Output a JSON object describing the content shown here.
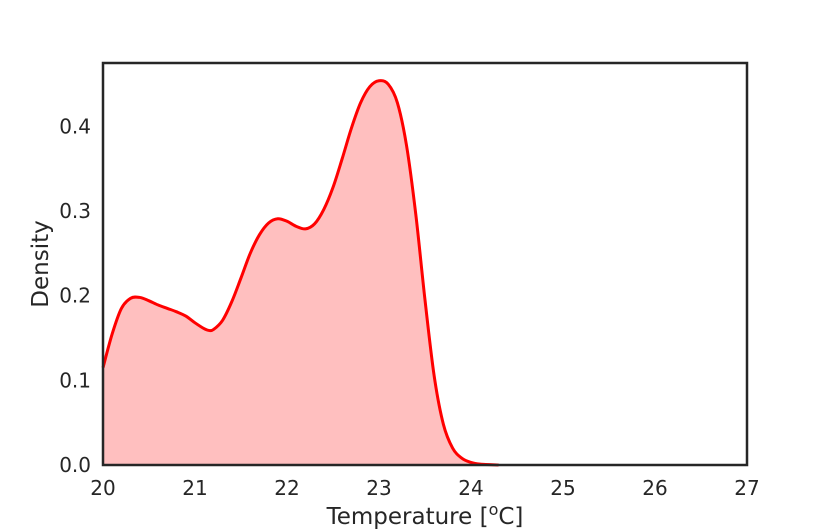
{
  "chart_data": {
    "type": "area",
    "xlabel": "Temperature [",
    "xlabel_sup": "o",
    "xlabel_suffix": "C]",
    "ylabel": "Density",
    "xlim": [
      20,
      27
    ],
    "ylim": [
      0,
      0.475
    ],
    "x_ticks": [
      "20",
      "21",
      "22",
      "23",
      "24",
      "25",
      "26",
      "27"
    ],
    "y_ticks": [
      "0.0",
      "0.1",
      "0.2",
      "0.3",
      "0.4"
    ],
    "grid": false,
    "series": [
      {
        "color": "#ff0000",
        "fill_color": "#ffbfbf",
        "points": [
          [
            20.0,
            0.115
          ],
          [
            20.1,
            0.155
          ],
          [
            20.2,
            0.185
          ],
          [
            20.3,
            0.197
          ],
          [
            20.4,
            0.198
          ],
          [
            20.5,
            0.194
          ],
          [
            20.6,
            0.189
          ],
          [
            20.7,
            0.185
          ],
          [
            20.8,
            0.181
          ],
          [
            20.9,
            0.176
          ],
          [
            21.0,
            0.168
          ],
          [
            21.1,
            0.161
          ],
          [
            21.15,
            0.159
          ],
          [
            21.2,
            0.16
          ],
          [
            21.3,
            0.171
          ],
          [
            21.4,
            0.193
          ],
          [
            21.5,
            0.221
          ],
          [
            21.6,
            0.25
          ],
          [
            21.7,
            0.272
          ],
          [
            21.8,
            0.286
          ],
          [
            21.9,
            0.291
          ],
          [
            22.0,
            0.288
          ],
          [
            22.1,
            0.282
          ],
          [
            22.2,
            0.279
          ],
          [
            22.3,
            0.285
          ],
          [
            22.4,
            0.302
          ],
          [
            22.5,
            0.328
          ],
          [
            22.6,
            0.362
          ],
          [
            22.7,
            0.398
          ],
          [
            22.8,
            0.428
          ],
          [
            22.9,
            0.447
          ],
          [
            23.0,
            0.454
          ],
          [
            23.1,
            0.45
          ],
          [
            23.2,
            0.428
          ],
          [
            23.3,
            0.377
          ],
          [
            23.4,
            0.296
          ],
          [
            23.5,
            0.195
          ],
          [
            23.6,
            0.105
          ],
          [
            23.7,
            0.048
          ],
          [
            23.8,
            0.02
          ],
          [
            23.9,
            0.008
          ],
          [
            24.0,
            0.003
          ],
          [
            24.1,
            0.001
          ],
          [
            24.3,
            0.0
          ]
        ]
      }
    ]
  }
}
